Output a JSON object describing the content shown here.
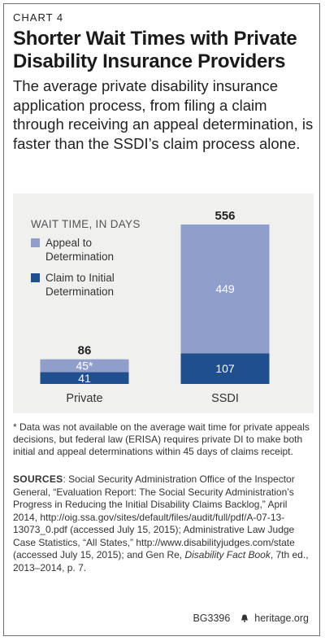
{
  "header": {
    "chart_number": "CHART 4",
    "title": "Shorter Wait Times with Private Disability Insurance Providers",
    "subtitle": "The average private disability insurance application process, from filing a claim through receiving an appeal determination, is faster than the SSDI’s claim process alone."
  },
  "legend": {
    "title": "WAIT TIME, IN DAYS",
    "items": [
      {
        "label": "Appeal to Determination",
        "color": "#8f9ecb"
      },
      {
        "label": "Claim to Initial Determination",
        "color": "#1f4f8e"
      }
    ]
  },
  "chart_data": {
    "type": "bar",
    "stacked": true,
    "categories": [
      "Private",
      "SSDI"
    ],
    "series": [
      {
        "name": "Claim to Initial Determination",
        "values": [
          41,
          107
        ],
        "value_labels": [
          "41",
          "107"
        ]
      },
      {
        "name": "Appeal to Determination",
        "values": [
          45,
          449
        ],
        "value_labels": [
          "45*",
          "449"
        ]
      }
    ],
    "totals": [
      86,
      556
    ],
    "ylabel": "WAIT TIME, IN DAYS",
    "ylim": [
      0,
      556
    ],
    "grid": false,
    "legend_position": "top-left"
  },
  "notes": {
    "footnote": "* Data was not available on the average wait time for private appeals decisions, but federal law (ERISA) requires private DI to make both initial and appeal determinations within 45 days of claims receipt.",
    "sources_label": "SOURCES",
    "sources_text": ": Social Security Administration Office of the Inspector General, “Evaluation Report: The Social Security Administration’s Progress in Reducing the Initial Disability Claims Backlog,” April 2014, http://oig.ssa.gov/sites/default/files/audit/full/pdf/A-07-13-13073_0.pdf (accessed July 15, 2015); Administrative Law Judge Case Statistics, “All States,” http://www.disabilityjudges.com/state (accessed July 15, 2015); and Gen Re, ",
    "sources_italic": "Disability Fact Book",
    "sources_tail": ", 7th ed., 2013–2014, p. 7."
  },
  "footer": {
    "id": "BG3396",
    "site": "heritage.org"
  },
  "colors": {
    "appeal": "#8f9ecb",
    "claim": "#1f4f8e",
    "panel": "#f0f0ef"
  }
}
